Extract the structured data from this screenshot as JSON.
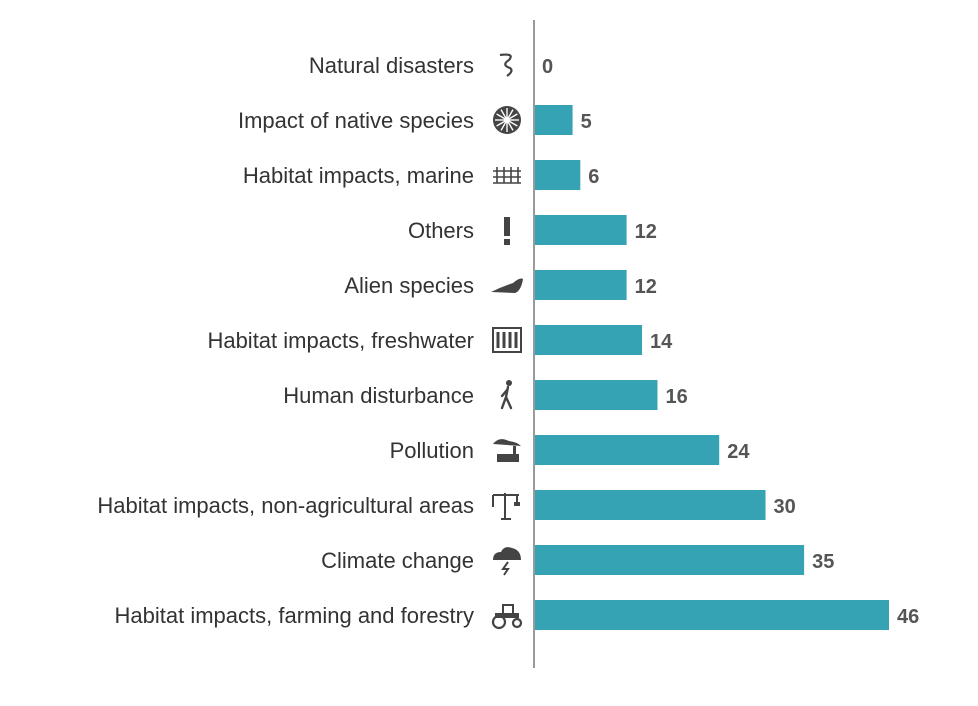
{
  "chart_data": {
    "type": "bar",
    "orientation": "horizontal",
    "categories": [
      "Natural disasters",
      "Impact of native species",
      "Habitat impacts, marine",
      "Others",
      "Alien species",
      "Habitat impacts, freshwater",
      "Human disturbance",
      "Pollution",
      "Habitat impacts, non-agricultural areas",
      "Climate change",
      "Habitat impacts, farming and forestry"
    ],
    "values": [
      0,
      5,
      6,
      12,
      12,
      14,
      16,
      24,
      30,
      35,
      46
    ],
    "icons": [
      "tornado-icon",
      "fan-icon",
      "marine-icon",
      "exclamation-icon",
      "slug-icon",
      "dam-icon",
      "person-icon",
      "factory-smoke-icon",
      "construction-crane-icon",
      "storm-cloud-icon",
      "tractor-icon"
    ],
    "title": "",
    "xlabel": "",
    "ylabel": "",
    "xlim": [
      0,
      46
    ],
    "grid": false,
    "bar_color": "#35a3b4",
    "axis_color": "#9a9a9a"
  }
}
